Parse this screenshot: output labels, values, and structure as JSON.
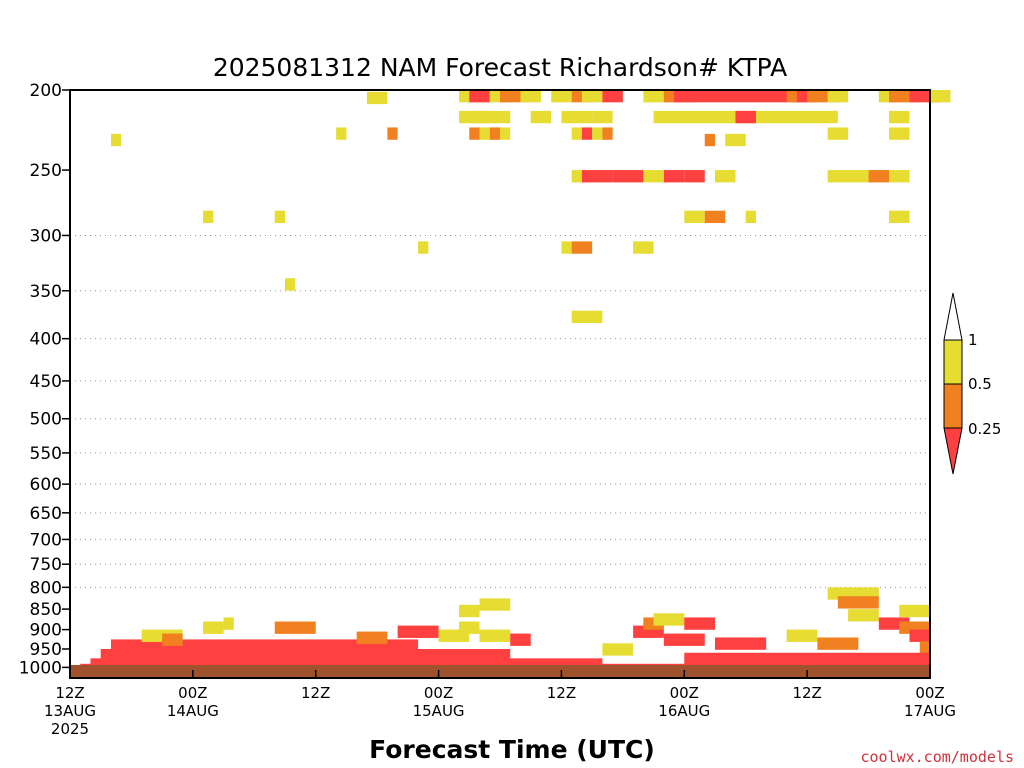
{
  "chart_data": {
    "type": "heatmap",
    "title": "2025081312 NAM Forecast Richardson# KTPA",
    "xlabel": "Forecast Time (UTC)",
    "ylabel": "",
    "y_scale": "log",
    "y_reversed": true,
    "ylim": [
      1030,
      200
    ],
    "xlim": [
      0,
      84
    ],
    "grid": "dotted horizontal at 300-800 hPa",
    "yticks": [
      200,
      250,
      300,
      350,
      400,
      450,
      500,
      550,
      600,
      650,
      700,
      750,
      800,
      850,
      900,
      950,
      1000
    ],
    "xticks": [
      {
        "hour": 0,
        "lines": [
          "12Z",
          "13AUG",
          "2025"
        ]
      },
      {
        "hour": 12,
        "lines": [
          "00Z",
          "14AUG"
        ]
      },
      {
        "hour": 24,
        "lines": [
          "12Z"
        ]
      },
      {
        "hour": 36,
        "lines": [
          "00Z",
          "15AUG"
        ]
      },
      {
        "hour": 48,
        "lines": [
          "12Z"
        ]
      },
      {
        "hour": 60,
        "lines": [
          "00Z",
          "16AUG"
        ]
      },
      {
        "hour": 72,
        "lines": [
          "12Z"
        ]
      },
      {
        "hour": 84,
        "lines": [
          "00Z",
          "17AUG"
        ]
      }
    ],
    "colorbar": {
      "levels": [
        "1",
        "0.5",
        "0.25"
      ],
      "colors": {
        "lt025": "#ff4040",
        "025_05": "#f08020",
        "05_1": "#e6dc32",
        "gt1": "#ffffff"
      }
    },
    "ground_color": "#a0522d",
    "cells": [
      [
        29,
        201,
        2,
        "y"
      ],
      [
        38,
        200,
        3,
        "y"
      ],
      [
        39,
        200,
        2,
        "r"
      ],
      [
        41,
        200,
        2,
        "y"
      ],
      [
        42,
        200,
        3,
        "o"
      ],
      [
        44,
        200,
        2,
        "y"
      ],
      [
        47,
        200,
        2,
        "y"
      ],
      [
        49,
        200,
        2,
        "o"
      ],
      [
        50,
        200,
        2,
        "y"
      ],
      [
        52,
        200,
        2,
        "r"
      ],
      [
        56,
        200,
        3,
        "y"
      ],
      [
        58,
        200,
        3,
        "o"
      ],
      [
        59,
        200,
        12,
        "r"
      ],
      [
        70,
        200,
        2,
        "o"
      ],
      [
        71,
        200,
        2,
        "r"
      ],
      [
        72,
        200,
        3,
        "o"
      ],
      [
        74,
        200,
        2,
        "y"
      ],
      [
        79,
        200,
        2,
        "y"
      ],
      [
        80,
        200,
        3,
        "o"
      ],
      [
        82,
        200,
        3,
        "r"
      ],
      [
        84,
        200,
        2,
        "y"
      ],
      [
        38,
        212,
        3,
        "y"
      ],
      [
        39,
        212,
        2,
        "y"
      ],
      [
        41,
        212,
        2,
        "y"
      ],
      [
        45,
        212,
        2,
        "y"
      ],
      [
        48,
        212,
        3,
        "y"
      ],
      [
        51,
        212,
        2,
        "y"
      ],
      [
        57,
        212,
        18,
        "y"
      ],
      [
        65,
        212,
        2,
        "r"
      ],
      [
        80,
        212,
        2,
        "y"
      ],
      [
        4,
        226,
        1,
        "y"
      ],
      [
        26,
        222,
        1,
        "y"
      ],
      [
        31,
        222,
        1,
        "o"
      ],
      [
        39,
        222,
        1,
        "o"
      ],
      [
        40,
        222,
        1,
        "y"
      ],
      [
        41,
        222,
        1,
        "o"
      ],
      [
        42,
        222,
        1,
        "y"
      ],
      [
        49,
        222,
        1,
        "y"
      ],
      [
        50,
        222,
        1,
        "r"
      ],
      [
        51,
        222,
        1,
        "y"
      ],
      [
        52,
        222,
        1,
        "o"
      ],
      [
        62,
        226,
        1,
        "o"
      ],
      [
        64,
        226,
        1,
        "y"
      ],
      [
        65,
        226,
        1,
        "y"
      ],
      [
        74,
        222,
        2,
        "y"
      ],
      [
        80,
        222,
        2,
        "y"
      ],
      [
        49,
        250,
        2,
        "y"
      ],
      [
        50,
        250,
        3,
        "r"
      ],
      [
        53,
        250,
        3,
        "r"
      ],
      [
        56,
        250,
        2,
        "y"
      ],
      [
        58,
        250,
        2,
        "r"
      ],
      [
        60,
        250,
        2,
        "r"
      ],
      [
        63,
        250,
        2,
        "y"
      ],
      [
        74,
        250,
        4,
        "y"
      ],
      [
        78,
        250,
        2,
        "o"
      ],
      [
        80,
        250,
        2,
        "y"
      ],
      [
        13,
        280,
        1,
        "y"
      ],
      [
        20,
        280,
        1,
        "y"
      ],
      [
        60,
        280,
        2,
        "y"
      ],
      [
        62,
        280,
        2,
        "o"
      ],
      [
        66,
        280,
        1,
        "y"
      ],
      [
        80,
        280,
        2,
        "y"
      ],
      [
        34,
        305,
        1,
        "y"
      ],
      [
        48,
        305,
        1,
        "y"
      ],
      [
        49,
        305,
        2,
        "o"
      ],
      [
        55,
        305,
        2,
        "y"
      ],
      [
        21,
        338,
        1,
        "y"
      ],
      [
        49,
        370,
        3,
        "y"
      ],
      [
        4,
        925,
        30,
        "r"
      ],
      [
        3,
        950,
        40,
        "r"
      ],
      [
        2,
        975,
        50,
        "r"
      ],
      [
        1,
        990,
        82,
        "r"
      ],
      [
        7,
        900,
        4,
        "y"
      ],
      [
        9,
        910,
        2,
        "o"
      ],
      [
        13,
        880,
        2,
        "y"
      ],
      [
        15,
        870,
        1,
        "y"
      ],
      [
        20,
        880,
        4,
        "o"
      ],
      [
        28,
        905,
        3,
        "o"
      ],
      [
        32,
        890,
        4,
        "r"
      ],
      [
        36,
        900,
        3,
        "y"
      ],
      [
        38,
        840,
        2,
        "y"
      ],
      [
        40,
        825,
        3,
        "y"
      ],
      [
        38,
        880,
        2,
        "y"
      ],
      [
        40,
        900,
        3,
        "y"
      ],
      [
        43,
        910,
        2,
        "r"
      ],
      [
        52,
        935,
        3,
        "y"
      ],
      [
        55,
        890,
        3,
        "r"
      ],
      [
        56,
        870,
        2,
        "o"
      ],
      [
        57,
        860,
        3,
        "y"
      ],
      [
        60,
        870,
        3,
        "r"
      ],
      [
        58,
        910,
        4,
        "r"
      ],
      [
        63,
        920,
        5,
        "r"
      ],
      [
        70,
        900,
        3,
        "y"
      ],
      [
        73,
        920,
        4,
        "o"
      ],
      [
        74,
        800,
        5,
        "y"
      ],
      [
        75,
        820,
        4,
        "o"
      ],
      [
        76,
        850,
        3,
        "y"
      ],
      [
        79,
        870,
        3,
        "r"
      ],
      [
        81,
        880,
        3,
        "o"
      ],
      [
        81,
        840,
        3,
        "y"
      ],
      [
        82,
        900,
        2,
        "r"
      ],
      [
        83,
        930,
        1,
        "o"
      ],
      [
        60,
        960,
        24,
        "r"
      ],
      [
        63,
        980,
        20,
        "r"
      ]
    ]
  },
  "credit": "coolwx.com/models"
}
